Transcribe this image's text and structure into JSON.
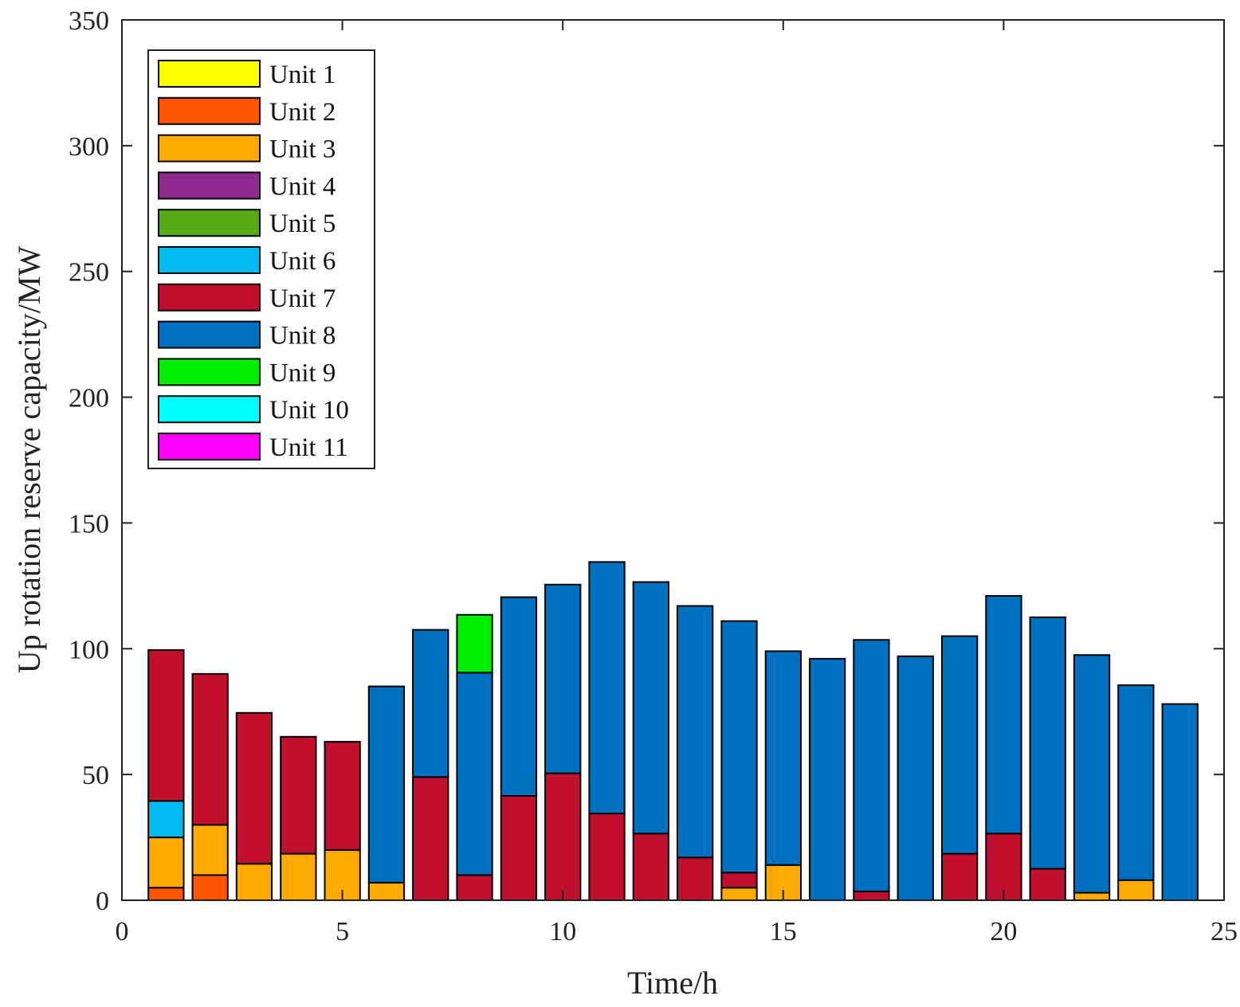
{
  "chart_data": {
    "type": "bar",
    "stacked": true,
    "title": "",
    "xlabel": "Time/h",
    "ylabel": "Up rotation reserve capacity/MW",
    "xlim": [
      0,
      25
    ],
    "ylim": [
      0,
      350
    ],
    "xticks": [
      0,
      5,
      10,
      15,
      20,
      25
    ],
    "yticks": [
      0,
      50,
      100,
      150,
      200,
      250,
      300,
      350
    ],
    "legend_position": "top-left",
    "x": [
      1,
      2,
      3,
      4,
      5,
      6,
      7,
      8,
      9,
      10,
      11,
      12,
      13,
      14,
      15,
      16,
      17,
      18,
      19,
      20,
      21,
      22,
      23,
      24
    ],
    "series": [
      {
        "name": "Unit 1",
        "color": "#FFFF00",
        "values": [
          0,
          0,
          0,
          0,
          0,
          0,
          0,
          0,
          0,
          0,
          0,
          0,
          0,
          0,
          0,
          0,
          0,
          0,
          0,
          0,
          0,
          0,
          0,
          0
        ]
      },
      {
        "name": "Unit 2",
        "color": "#FF5500",
        "values": [
          5,
          10,
          0,
          0,
          0,
          0,
          0,
          0,
          0,
          0,
          0,
          0,
          0,
          0,
          0,
          0,
          0,
          0,
          0,
          0,
          0,
          0,
          0,
          0
        ]
      },
      {
        "name": "Unit 3",
        "color": "#FFAA00",
        "values": [
          20,
          20,
          14.5,
          18.5,
          20,
          7,
          0,
          0,
          0,
          0,
          0,
          0,
          0,
          5,
          14,
          0,
          0,
          0,
          0,
          0,
          0,
          3,
          8,
          0
        ]
      },
      {
        "name": "Unit 4",
        "color": "#8E2B8E",
        "values": [
          0,
          0,
          0,
          0,
          0,
          0,
          0,
          0,
          0,
          0,
          0,
          0,
          0,
          0,
          0,
          0,
          0,
          0,
          0,
          0,
          0,
          0,
          0,
          0
        ]
      },
      {
        "name": "Unit 5",
        "color": "#55AA15",
        "values": [
          0,
          0,
          0,
          0,
          0,
          0,
          0,
          0,
          0,
          0,
          0,
          0,
          0,
          0,
          0,
          0,
          0,
          0,
          0,
          0,
          0,
          0,
          0,
          0
        ]
      },
      {
        "name": "Unit 6",
        "color": "#00BBEE",
        "values": [
          14.5,
          0,
          0,
          0,
          0,
          0,
          0,
          0,
          0,
          0,
          0,
          0,
          0,
          0,
          0,
          0,
          0,
          0,
          0,
          0,
          0,
          0,
          0,
          0
        ]
      },
      {
        "name": "Unit 7",
        "color": "#C0102E",
        "values": [
          60,
          60,
          60,
          46.5,
          43,
          0,
          49,
          10,
          41.5,
          50.5,
          34.5,
          26.5,
          17,
          6,
          0,
          0,
          3.5,
          0,
          18.5,
          26.5,
          12.5,
          0,
          0,
          0
        ]
      },
      {
        "name": "Unit 8",
        "color": "#0070C0",
        "values": [
          0,
          0,
          0,
          0,
          0,
          78,
          58.5,
          80.5,
          79,
          75,
          100,
          100,
          100,
          100,
          85,
          96,
          100,
          97,
          86.5,
          94.5,
          100,
          94.5,
          77.5,
          78
        ]
      },
      {
        "name": "Unit 9",
        "color": "#00EE00",
        "values": [
          0,
          0,
          0,
          0,
          0,
          0,
          0,
          23,
          0,
          0,
          0,
          0,
          0,
          0,
          0,
          0,
          0,
          0,
          0,
          0,
          0,
          0,
          0,
          0
        ]
      },
      {
        "name": "Unit 10",
        "color": "#00FFFF",
        "values": [
          0,
          0,
          0,
          0,
          0,
          0,
          0,
          0,
          0,
          0,
          0,
          0,
          0,
          0,
          0,
          0,
          0,
          0,
          0,
          0,
          0,
          0,
          0,
          0
        ]
      },
      {
        "name": "Unit 11",
        "color": "#FF00FF",
        "values": [
          0,
          0,
          0,
          0,
          0,
          0,
          0,
          0,
          0,
          0,
          0,
          0,
          0,
          0,
          0,
          0,
          0,
          0,
          0,
          0,
          0,
          0,
          0,
          0
        ]
      }
    ]
  }
}
